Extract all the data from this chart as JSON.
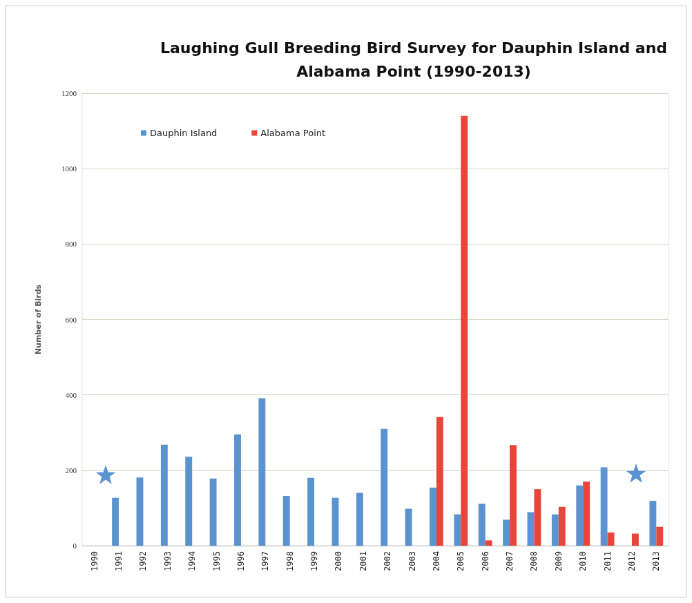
{
  "chart_data": {
    "type": "bar",
    "title": "Laughing Gull Breeding Bird Survey for Dauphin Island and\nAlabama Point (1990-2013)",
    "ylabel": "Number of Birds",
    "categories": [
      "1990",
      "1991",
      "1992",
      "1993",
      "1994",
      "1995",
      "1996",
      "1997",
      "1998",
      "1999",
      "2000",
      "2001",
      "2002",
      "2003",
      "2004",
      "2005",
      "2006",
      "2007",
      "2008",
      "2009",
      "2010",
      "2011",
      "2012",
      "2013"
    ],
    "series": [
      {
        "name": "Dauphin Island",
        "color": "#5b93d0",
        "values": [
          null,
          127,
          181,
          268,
          236,
          178,
          295,
          391,
          132,
          180,
          127,
          140,
          310,
          98,
          154,
          83,
          111,
          69,
          89,
          83,
          160,
          208,
          null,
          119
        ]
      },
      {
        "name": "Alabama Point",
        "color": "#e8463a",
        "values": [
          null,
          null,
          null,
          null,
          null,
          null,
          null,
          null,
          null,
          null,
          null,
          null,
          null,
          null,
          341,
          1140,
          14,
          267,
          150,
          103,
          170,
          35,
          32,
          50
        ]
      }
    ],
    "ylim": [
      0,
      1200
    ],
    "yticks": [
      0,
      200,
      400,
      600,
      800,
      1000,
      1200
    ],
    "grid": "y",
    "legend": "top left"
  }
}
